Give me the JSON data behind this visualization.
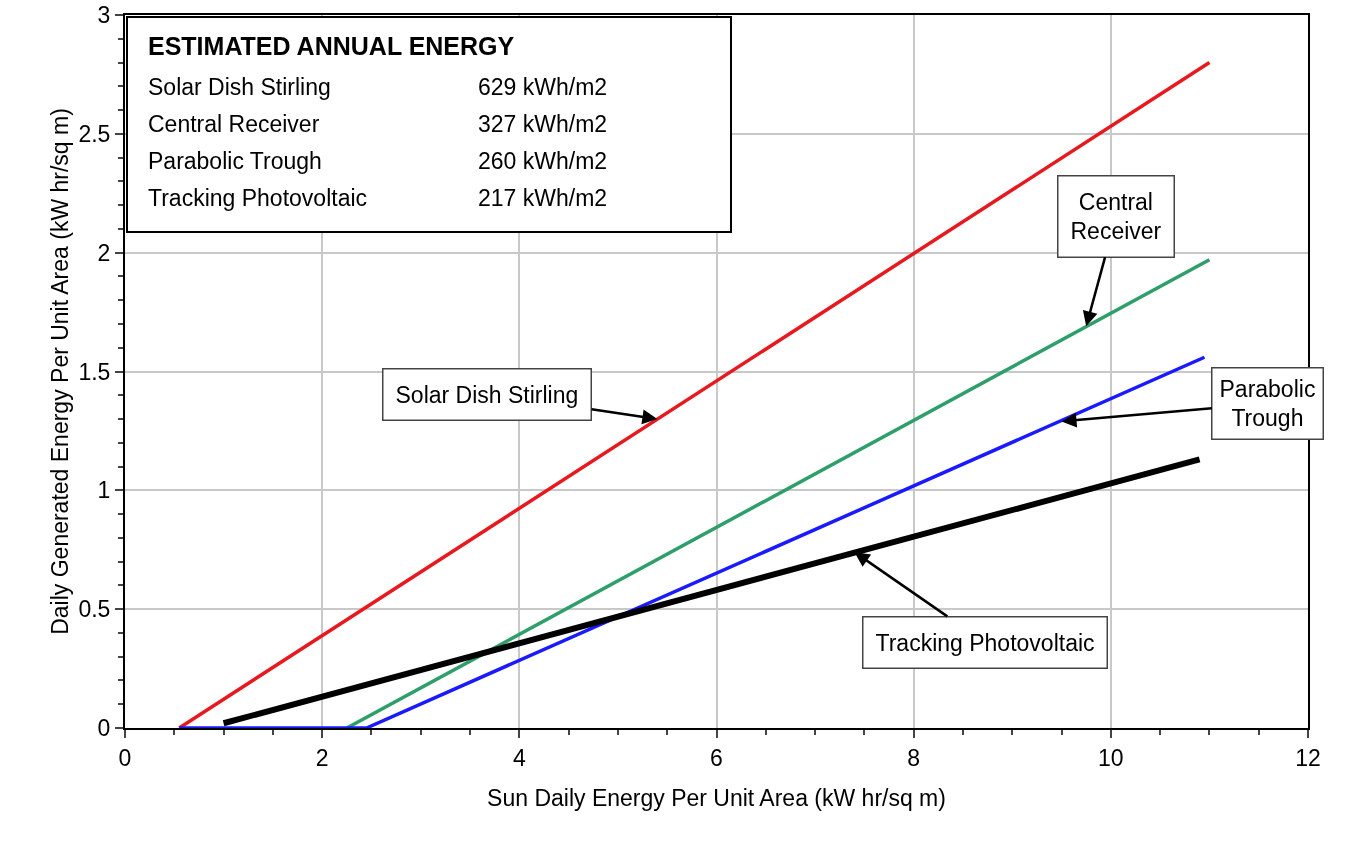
{
  "chart_data": {
    "type": "line",
    "xlabel": "Sun Daily Energy Per Unit Area (kW hr/sq m)",
    "ylabel": "Daily Generated Energy Per Unit Area (kW hr/sq m)",
    "xlim": [
      0,
      12
    ],
    "ylim": [
      0,
      3
    ],
    "xticks": [
      0,
      2,
      4,
      6,
      8,
      10,
      12
    ],
    "yticks": [
      0,
      0.5,
      1,
      1.5,
      2,
      2.5,
      3
    ],
    "grid": true,
    "marker": "none",
    "line_style": "solid",
    "series": [
      {
        "color": "#e8191e",
        "x": [
          0.55,
          11
        ],
        "values": [
          0,
          2.8
        ]
      },
      {
        "color": "#2e9e6a",
        "x": [
          2.25,
          11
        ],
        "values": [
          0,
          1.97
        ]
      },
      {
        "color": "#1a1aff",
        "x": [
          0.55,
          2.45,
          10.95
        ],
        "values": [
          0,
          0,
          1.56
        ]
      },
      {
        "color": "#000000",
        "x": [
          1.0,
          10.9
        ],
        "values": [
          0.02,
          1.13
        ]
      }
    ],
    "annotations": [
      "ESTIMATED ANNUAL ENERGY",
      "Solar Dish Stirling",
      "629 kWh/m2",
      "Central Receiver",
      "327 kWh/m2",
      "Parabolic Trough",
      "260 kWh/m2",
      "Tracking Photovoltaic",
      "217 kWh/m2",
      {
        "text": "Solar Dish Stirling",
        "x": 5.4,
        "y": 1.3
      },
      {
        "text": "Central Receiver",
        "x": 9.75,
        "y": 1.69
      },
      {
        "text": "Parabolic Trough",
        "x": 9.5,
        "y": 1.29
      },
      {
        "text": "Tracking Photovoltaic",
        "x": 7.4,
        "y": 0.74
      }
    ]
  }
}
